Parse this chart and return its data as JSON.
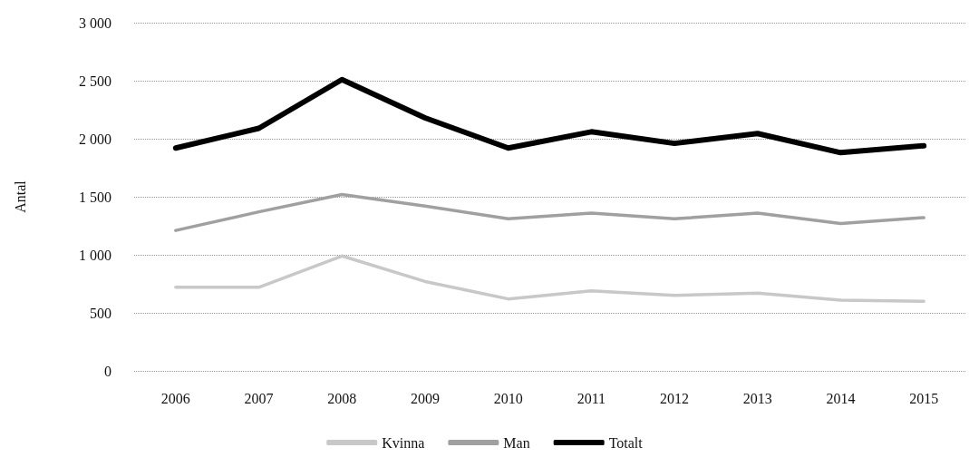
{
  "chart_data": {
    "type": "line",
    "ylabel": "Antal",
    "categories": [
      "2006",
      "2007",
      "2008",
      "2009",
      "2010",
      "2011",
      "2012",
      "2013",
      "2014",
      "2015"
    ],
    "series": [
      {
        "name": "Kvinna",
        "color": "#c8c8c8",
        "values": [
          720,
          720,
          990,
          770,
          620,
          690,
          650,
          670,
          610,
          600
        ]
      },
      {
        "name": "Man",
        "color": "#a0a0a0",
        "values": [
          1210,
          1370,
          1520,
          1420,
          1310,
          1360,
          1310,
          1360,
          1270,
          1320
        ]
      },
      {
        "name": "Totalt",
        "color": "#000000",
        "values": [
          1920,
          2090,
          2510,
          2180,
          1920,
          2060,
          1960,
          2045,
          1880,
          1940
        ]
      }
    ],
    "ylim": [
      0,
      3000
    ],
    "yticks": [
      0,
      500,
      {
        "value": 1000,
        "label": "1 000"
      },
      {
        "value": 1500,
        "label": "1 500"
      },
      {
        "value": 2000,
        "label": "2 000"
      },
      {
        "value": 2500,
        "label": "2 500"
      },
      {
        "value": 3000,
        "label": "3 000"
      }
    ],
    "grid": "y",
    "legend": "bottom",
    "marker": "none",
    "line_style": "solid"
  }
}
